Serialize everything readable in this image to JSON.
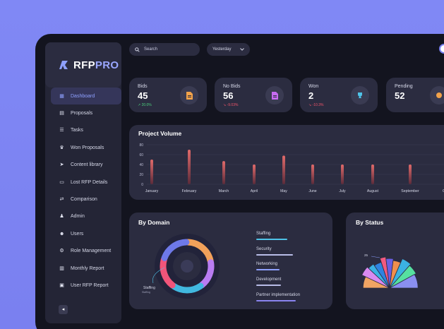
{
  "app": {
    "logo_prefix": "RFP",
    "logo_suffix": "PRO"
  },
  "sidebar": {
    "items": [
      {
        "label": "Dashboard",
        "icon": "grid-icon",
        "glyph": "▦",
        "active": true
      },
      {
        "label": "Proposals",
        "icon": "document-icon",
        "glyph": "▤"
      },
      {
        "label": "Tasks",
        "icon": "list-icon",
        "glyph": "☰"
      },
      {
        "label": "Won Proposals",
        "icon": "trophy-icon",
        "glyph": "♛"
      },
      {
        "label": "Content library",
        "icon": "send-icon",
        "glyph": "➤"
      },
      {
        "label": "Lost RFP Details",
        "icon": "monitor-icon",
        "glyph": "▭"
      },
      {
        "label": "Comparison",
        "icon": "compare-icon",
        "glyph": "⇄"
      },
      {
        "label": "Admin",
        "icon": "admin-icon",
        "glyph": "♟"
      },
      {
        "label": "Users",
        "icon": "users-icon",
        "glyph": "☻"
      },
      {
        "label": "Role Management",
        "icon": "role-icon",
        "glyph": "⚙"
      },
      {
        "label": "Monthly Report",
        "icon": "chart-icon",
        "glyph": "▥"
      },
      {
        "label": "User RFP Report",
        "icon": "report-icon",
        "glyph": "▣"
      }
    ],
    "collapse_glyph": "◂"
  },
  "toolbar": {
    "search_placeholder": "Search",
    "period": "Yesterday"
  },
  "stats": [
    {
      "label": "Bids",
      "value": "45",
      "trend": "20.0%",
      "trend_dir": "up",
      "icon": "file-icon",
      "color": "#f2a24a"
    },
    {
      "label": "No Bids",
      "value": "56",
      "trend": "-9.03%",
      "trend_dir": "down",
      "icon": "file-icon",
      "color": "#c56bf0"
    },
    {
      "label": "Won",
      "value": "2",
      "trend": "-10.3%",
      "trend_dir": "down",
      "icon": "trophy-icon",
      "color": "#4fc3e8"
    },
    {
      "label": "Pending",
      "value": "52",
      "trend": "",
      "trend_dir": "",
      "icon": "clock-icon",
      "color": "#f2a24a"
    }
  ],
  "project_volume": {
    "title": "Project Volume",
    "chart_data": {
      "type": "bar",
      "categories": [
        "January",
        "February",
        "March",
        "April",
        "May",
        "June",
        "July",
        "August",
        "September",
        "O"
      ],
      "values": [
        50,
        70,
        47,
        40,
        58,
        40,
        40,
        40,
        40,
        0
      ],
      "yticks": [
        "80",
        "60",
        "40",
        "20",
        "0"
      ],
      "ylim": [
        0,
        80
      ]
    }
  },
  "by_domain": {
    "title": "By Domain",
    "callout_label": "Staffing",
    "callout_sub": "Staffing",
    "legend": [
      {
        "label": "Staffing",
        "color": "#4fc3e8"
      },
      {
        "label": "Security",
        "color": "#b9bde8"
      },
      {
        "label": "Networking",
        "color": "#8ea0ff"
      },
      {
        "label": "Development",
        "color": "#b9bde8"
      },
      {
        "label": "Partner implementation",
        "color": "#8a84f0"
      }
    ],
    "chart_data": {
      "type": "pie",
      "labels": [
        "Development",
        "Security",
        "Staffing",
        "Networking",
        "Partner implementation"
      ],
      "values": [
        22,
        18,
        20,
        20,
        20
      ],
      "colors": [
        "#f1a15a",
        "#b97cf2",
        "#41b8e0",
        "#f1557a",
        "#6e79e8"
      ]
    }
  },
  "by_status": {
    "title": "By Status",
    "callout_value": "25",
    "chart_data": {
      "type": "pie",
      "values": [
        14,
        10,
        7,
        9,
        6,
        8,
        9,
        10,
        11,
        16
      ],
      "colors": [
        "#f0a463",
        "#d98af0",
        "#3bb2e3",
        "#2f83e0",
        "#f35a7f",
        "#6a5fe3",
        "#f08f4d",
        "#3bb2e3",
        "#56e0a0",
        "#8a8ff0"
      ]
    }
  }
}
